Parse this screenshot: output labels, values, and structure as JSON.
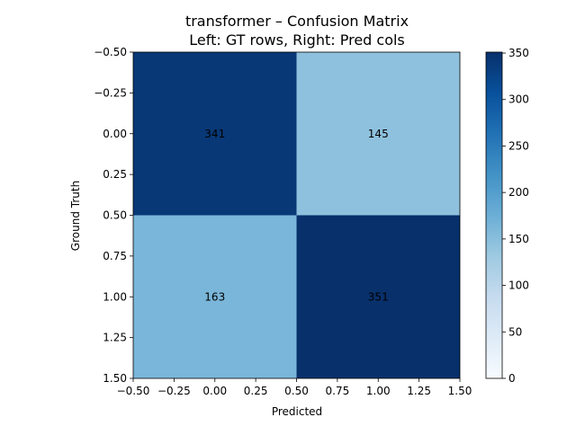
{
  "chart_data": {
    "type": "heatmap",
    "title": "transformer – Confusion Matrix",
    "subtitle": "Left: GT rows, Right: Pred cols",
    "xlabel": "Predicted",
    "ylabel": "Ground Truth",
    "matrix": [
      [
        341,
        145
      ],
      [
        163,
        351
      ]
    ],
    "cell_labels": [
      "341",
      "145",
      "163",
      "351"
    ],
    "xlim": [
      -0.5,
      1.5
    ],
    "ylim": [
      1.5,
      -0.5
    ],
    "x_ticks": [
      "−0.50",
      "−0.25",
      "0.00",
      "0.25",
      "0.50",
      "0.75",
      "1.00",
      "1.25",
      "1.50"
    ],
    "y_ticks": [
      "−0.50",
      "−0.25",
      "0.00",
      "0.25",
      "0.50",
      "0.75",
      "1.00",
      "1.25",
      "1.50"
    ],
    "colorbar": {
      "min": 0,
      "max": 351,
      "ticks": [
        "0",
        "50",
        "100",
        "150",
        "200",
        "250",
        "300",
        "350"
      ],
      "colormap": "Blues"
    }
  }
}
